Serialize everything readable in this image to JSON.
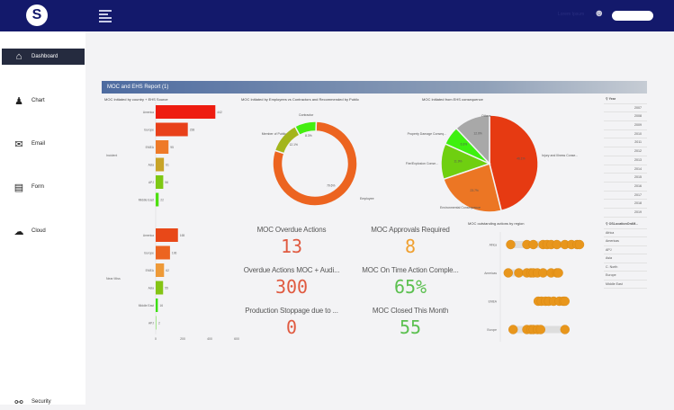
{
  "header": {
    "logo": "S",
    "user_name": "Lorem Ipsum"
  },
  "sidebar": {
    "items": [
      {
        "label": "Dashboard",
        "icon": "home-icon"
      },
      {
        "label": "Chart",
        "icon": "chart-icon"
      },
      {
        "label": "Email",
        "icon": "email-icon"
      },
      {
        "label": "Form",
        "icon": "form-icon"
      },
      {
        "label": "Cloud",
        "icon": "cloud-icon"
      },
      {
        "label": "Security",
        "icon": "lock-icon"
      }
    ]
  },
  "report": {
    "title": "MOC and EHS Report (1)"
  },
  "chart_data": [
    {
      "type": "bar",
      "title": "MOC Initiated by country + EHS Source",
      "groups": [
        {
          "name": "Incident",
          "categories": [
            "America",
            "Europe",
            "EMEA",
            "Asia",
            "APJ",
            "Middle East"
          ],
          "values": [
            442,
            238,
            95,
            61,
            56,
            22
          ]
        },
        {
          "name": "Near Miss",
          "categories": [
            "America",
            "Europe",
            "EMEA",
            "Asia",
            "Middle East",
            "APJ"
          ],
          "values": [
            165,
            106,
            62,
            55,
            16,
            2
          ]
        }
      ],
      "xticks": [
        "0",
        "200",
        "400",
        "600"
      ],
      "xlim": [
        0,
        600
      ]
    },
    {
      "type": "pie",
      "donut": true,
      "title": "MOC Initiated by Employees vs Contractors and Recommended by Public",
      "labels": [
        "Employee",
        "Member of Public",
        "Contractor"
      ],
      "values": [
        79.6,
        12.1,
        8.3
      ],
      "value_labels": [
        "79.6%",
        "12.1%",
        "8.3%"
      ],
      "colors": [
        "#ec6420",
        "#a3b51c",
        "#44ee10"
      ]
    },
    {
      "type": "pie",
      "title": "MOC Initiated from EHS consequence",
      "labels": [
        "Injury and Illness Conse...",
        "Environmental Consequence",
        "Fire/Explosion Conse...",
        "Property Damage Conseq...",
        "Others"
      ],
      "values": [
        46.1,
        23.7,
        11.9,
        6.3,
        12.0
      ],
      "value_labels": [
        "46.1%",
        "23.7%",
        "11.9%",
        "6.3%",
        "12.0%"
      ],
      "colors": [
        "#e63a12",
        "#ec7624",
        "#6fcf10",
        "#3ef010",
        "#a8a8a8"
      ]
    },
    {
      "type": "scatter",
      "title": "MOC outstanding actions by region",
      "categories": [
        "Africa",
        "Americas",
        "EMEA",
        "Europe"
      ],
      "points": [
        [
          5,
          25,
          33,
          45,
          50,
          55,
          62,
          72,
          80,
          87,
          90
        ],
        [
          2,
          15,
          25,
          30,
          33,
          38,
          45,
          55,
          62,
          64
        ],
        [
          39,
          43,
          48,
          52,
          58,
          65,
          70,
          72
        ],
        [
          8,
          25,
          30,
          33,
          38,
          42,
          72
        ]
      ],
      "xlim": [
        0,
        100
      ]
    }
  ],
  "kpis": [
    {
      "label": "MOC Overdue Actions",
      "value": "13",
      "color": "#e05a40",
      "link": true
    },
    {
      "label": "MOC Approvals Required",
      "value": "8",
      "color": "#f0a030",
      "link": true
    },
    {
      "label": "Overdue Actions MOC + Audi...",
      "value": "300",
      "color": "#e05a40"
    },
    {
      "label": "MOC On Time Action Comple...",
      "value": "65%",
      "color": "#5cc050"
    },
    {
      "label": "Production Stoppage due to ...",
      "value": "0",
      "color": "#e05a40"
    },
    {
      "label": "MOC Closed This Month",
      "value": "55",
      "color": "#5cc050"
    }
  ],
  "year_filter": {
    "title": "Year",
    "items": [
      "2007",
      "2008",
      "2009",
      "2010",
      "2011",
      "2012",
      "2013",
      "2014",
      "2015",
      "2016",
      "2017",
      "2018",
      "2019"
    ]
  },
  "region_filter": {
    "title": "OSLocationOrdM...",
    "items": [
      "Africa",
      "Americas",
      "APJ",
      "Asia",
      "C. North",
      "Europe",
      "Middle East"
    ]
  }
}
